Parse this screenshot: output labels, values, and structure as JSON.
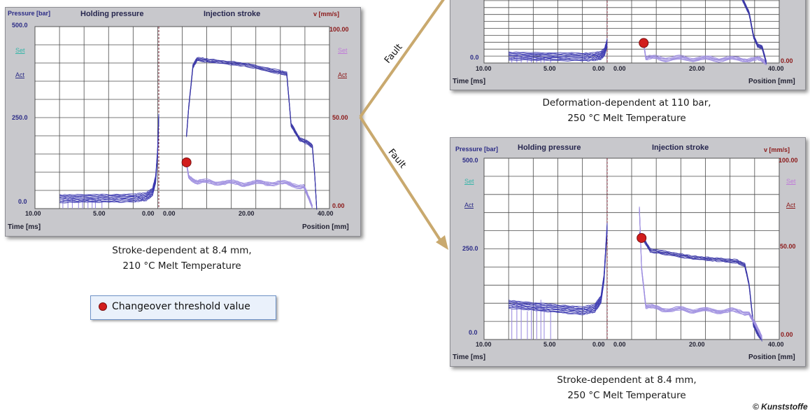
{
  "chart_data": [
    {
      "type": "line",
      "id": "left",
      "title": "",
      "section_titles": [
        "Holding pressure",
        "Injection stroke"
      ],
      "y_left_label": "Pressure [bar]",
      "y_right_label": "v [mm/s]",
      "y_left_ticks": [
        "500.0",
        "250.0",
        "0.0"
      ],
      "y_right_ticks": [
        "100.00",
        "50.00",
        "0.00"
      ],
      "ylim_pressure": [
        0,
        500
      ],
      "ylim_velocity": [
        0,
        100
      ],
      "x_time_label": "Time [ms]",
      "x_position_label": "Position [mm]",
      "x_time_ticks": [
        "10.00",
        "5.00",
        "0.00"
      ],
      "x_position_ticks": [
        "0.00",
        "20.00",
        "40.00"
      ],
      "xlim_time": [
        10,
        0
      ],
      "xlim_position": [
        0,
        40
      ],
      "legend_left": [
        "Set",
        "Act"
      ],
      "legend_right": [
        "Set",
        "Act"
      ],
      "series": [
        {
          "name": "Act",
          "kind": "pressure-over-time",
          "x": [
            8,
            6,
            4,
            2,
            1,
            0.5,
            0.25,
            0.1,
            0
          ],
          "y": [
            26,
            27,
            27,
            28,
            32,
            45,
            80,
            150,
            250
          ]
        },
        {
          "name": "Act",
          "kind": "velocity-over-position",
          "x": [
            6.5,
            7,
            8,
            9,
            12,
            20,
            28,
            30,
            31,
            33,
            35,
            36,
            36.5,
            37
          ],
          "y": [
            40,
            55,
            78,
            82,
            81,
            79,
            75,
            74,
            46,
            38,
            36,
            34,
            20,
            0
          ]
        },
        {
          "name": "Act",
          "kind": "pressure-over-position",
          "x": [
            6.5,
            7,
            9,
            15,
            20,
            25,
            30,
            34,
            36
          ],
          "y": [
            125,
            90,
            72,
            71,
            68,
            70,
            68,
            60,
            0
          ]
        }
      ],
      "threshold_point": {
        "x": 6.5,
        "y": 127
      }
    },
    {
      "type": "line",
      "id": "top-right",
      "title": "",
      "y_left_ticks": [
        "0.0"
      ],
      "y_right_ticks": [
        "0.00"
      ],
      "x_time_label": "Time [ms]",
      "x_position_label": "Position [mm]",
      "x_time_ticks": [
        "10.00",
        "5.00",
        "0.00"
      ],
      "x_position_ticks": [
        "0.00",
        "20.00",
        "40.00"
      ],
      "xlim_time": [
        10,
        0
      ],
      "xlim_position": [
        0,
        40
      ],
      "series": [
        {
          "name": "Act",
          "kind": "pressure-over-time",
          "x": [
            8,
            5,
            2,
            1,
            0.5,
            0.2,
            0
          ],
          "y": [
            36,
            33,
            31,
            33,
            40,
            60,
            110
          ]
        },
        {
          "name": "Act",
          "kind": "pressure-over-position",
          "x": [
            8.5,
            9,
            12,
            20,
            30,
            35,
            37
          ],
          "y": [
            110,
            25,
            24,
            22,
            20,
            18,
            0
          ]
        },
        {
          "name": "Act",
          "kind": "velocity-over-position",
          "x": [
            29,
            31,
            33,
            34,
            35,
            36,
            37
          ],
          "y": [
            108,
            96,
            70,
            38,
            24,
            22,
            0
          ]
        }
      ],
      "threshold_point": {
        "x": 8.5,
        "y": 110
      }
    },
    {
      "type": "line",
      "id": "bottom-right",
      "title": "",
      "section_titles": [
        "Holding pressure",
        "Injection stroke"
      ],
      "y_left_label": "Pressure [bar]",
      "y_right_label": "v [mm/s]",
      "y_left_ticks": [
        "500.0",
        "250.0",
        "0.0"
      ],
      "y_right_ticks": [
        "100.00",
        "50.00",
        "0.00"
      ],
      "ylim_pressure": [
        0,
        500
      ],
      "ylim_velocity": [
        0,
        100
      ],
      "x_time_label": "Time [ms]",
      "x_position_label": "Position [mm]",
      "x_time_ticks": [
        "10.00",
        "5.00",
        "0.00"
      ],
      "x_position_ticks": [
        "0.00",
        "20.00",
        "40.00"
      ],
      "xlim_time": [
        10,
        0
      ],
      "xlim_position": [
        0,
        40
      ],
      "legend_left": [
        "Set",
        "Act"
      ],
      "legend_right": [
        "Set",
        "Act"
      ],
      "series": [
        {
          "name": "Act",
          "kind": "pressure-over-time",
          "x": [
            8,
            6,
            4,
            2,
            1,
            0.5,
            0.25,
            0
          ],
          "y": [
            96,
            90,
            84,
            78,
            85,
            110,
            170,
            310
          ]
        },
        {
          "name": "Act",
          "kind": "velocity-over-position",
          "x": [
            7.5,
            8.5,
            10,
            15,
            20,
            25,
            30,
            32,
            33,
            34,
            35,
            36
          ],
          "y": [
            58,
            55,
            49,
            47,
            45,
            44,
            43,
            41,
            30,
            8,
            3,
            0
          ]
        },
        {
          "name": "Act",
          "kind": "pressure-over-position",
          "x": [
            7.5,
            8,
            9,
            12,
            20,
            28,
            33,
            36
          ],
          "y": [
            365,
            200,
            90,
            84,
            80,
            78,
            74,
            0
          ]
        }
      ],
      "threshold_point": {
        "x": 8,
        "y": 280
      }
    }
  ],
  "captions": {
    "left_line1": "Stroke-dependent at 8.4 mm,",
    "left_line2": "210 °C Melt Temperature",
    "top_right_line1": "Deformation-dependent at 110 bar,",
    "top_right_line2": "250 °C Melt Temperature",
    "bottom_right_line1": "Stroke-dependent at 8.4 mm,",
    "bottom_right_line2": "250 °C Melt Temperature"
  },
  "fault_labels": [
    "Fault",
    "Fault"
  ],
  "legend": {
    "label": "Changeover threshold value"
  },
  "credit": "© Kunststoffe",
  "colors": {
    "panel": "#c8c8cc",
    "plot_bg": "#ffffff",
    "grid": "#4b4b4b",
    "pressure_line": "#3b38b0",
    "velocity_line": "#3a36a6",
    "set_line": "#9e8fe0",
    "threshold_marker": "#d21d1d",
    "arrow": "#c9a96e"
  }
}
